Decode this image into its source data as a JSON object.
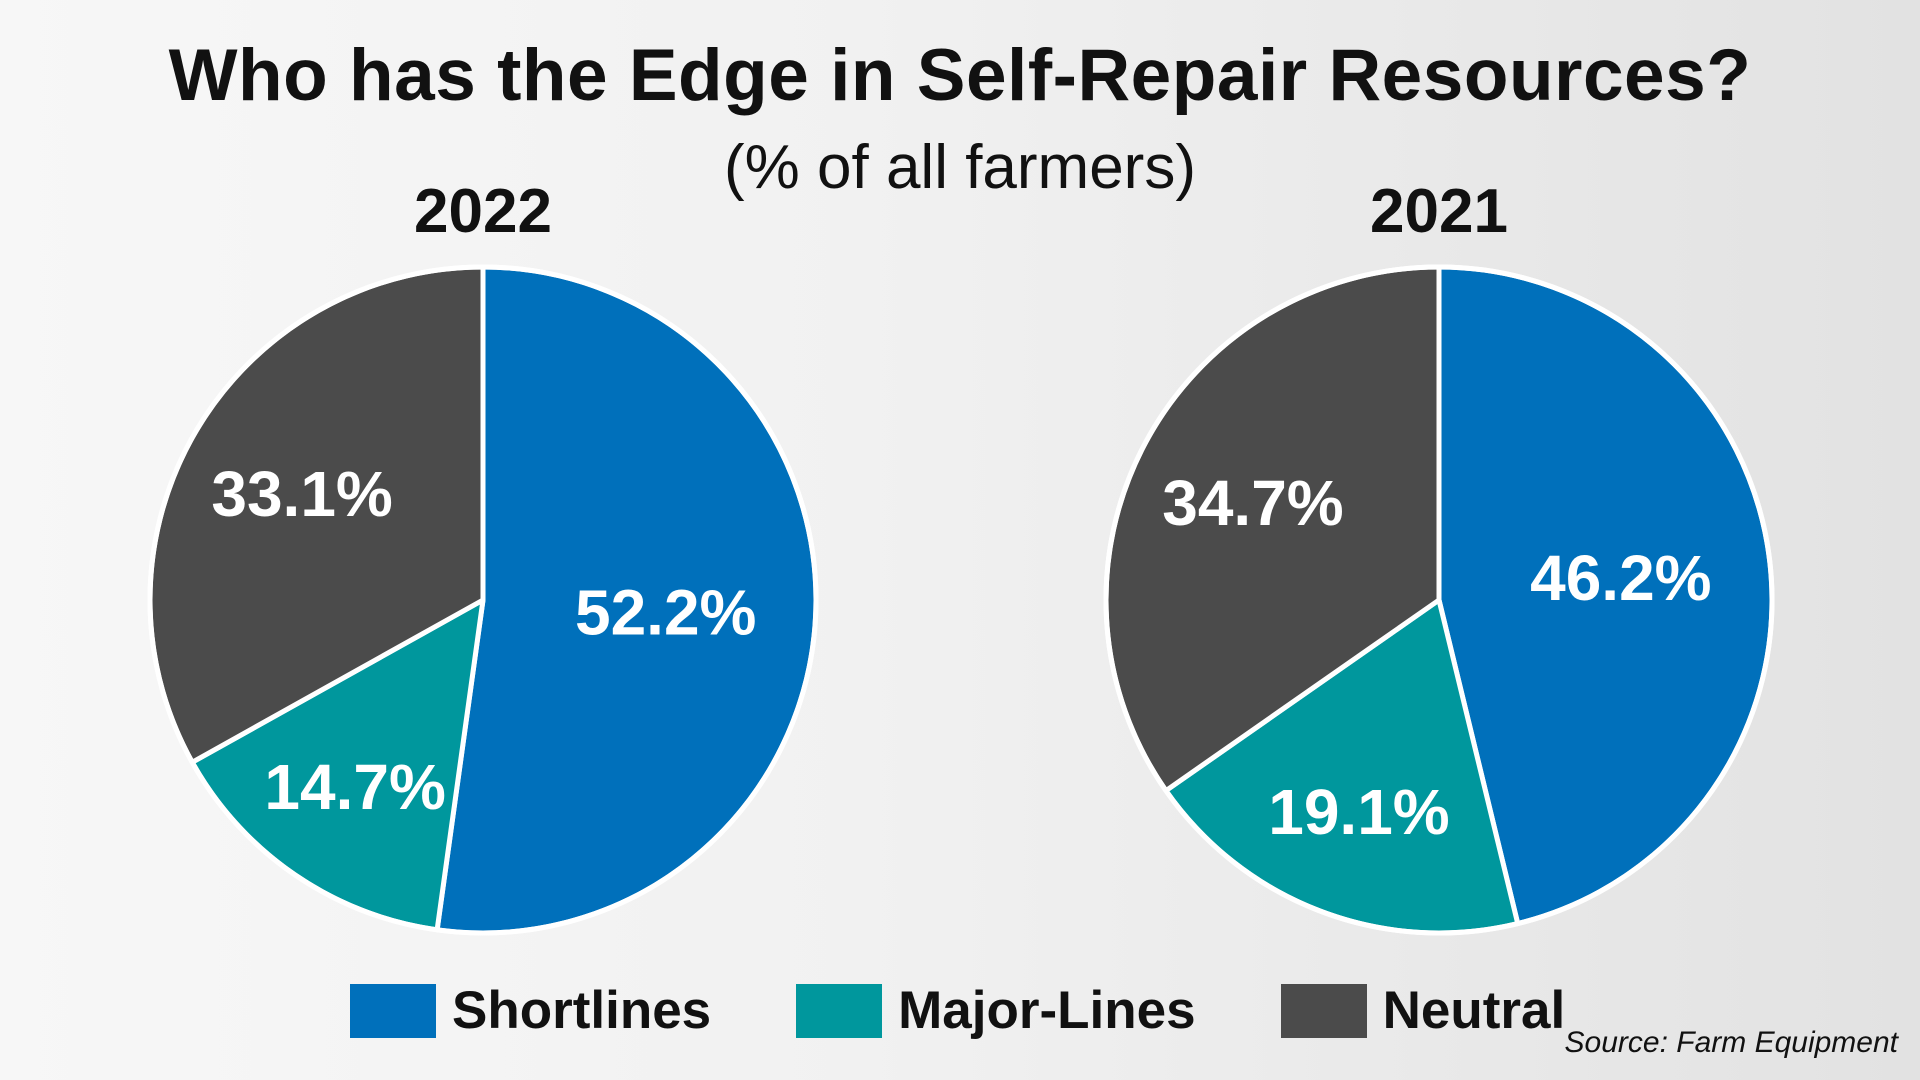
{
  "title": "Who has the Edge in Self-Repair Resources?",
  "subtitle": "(% of all farmers)",
  "source": "Source: Farm Equipment",
  "colors": {
    "Shortlines": "#0070bb",
    "Major-Lines": "#00979d",
    "Neutral": "#4b4b4b"
  },
  "legend": [
    {
      "label": "Shortlines",
      "color": "#0070bb"
    },
    {
      "label": "Major-Lines",
      "color": "#00979d"
    },
    {
      "label": "Neutral",
      "color": "#4b4b4b"
    }
  ],
  "chart_data": [
    {
      "type": "pie",
      "title": "2022",
      "slices": [
        {
          "name": "Shortlines",
          "value": 52.2,
          "label": "52.2%"
        },
        {
          "name": "Major-Lines",
          "value": 14.7,
          "label": "14.7%"
        },
        {
          "name": "Neutral",
          "value": 33.1,
          "label": "33.1%"
        }
      ]
    },
    {
      "type": "pie",
      "title": "2021",
      "slices": [
        {
          "name": "Shortlines",
          "value": 46.2,
          "label": "46.2%"
        },
        {
          "name": "Major-Lines",
          "value": 19.1,
          "label": "19.1%"
        },
        {
          "name": "Neutral",
          "value": 34.7,
          "label": "34.7%"
        }
      ]
    }
  ]
}
